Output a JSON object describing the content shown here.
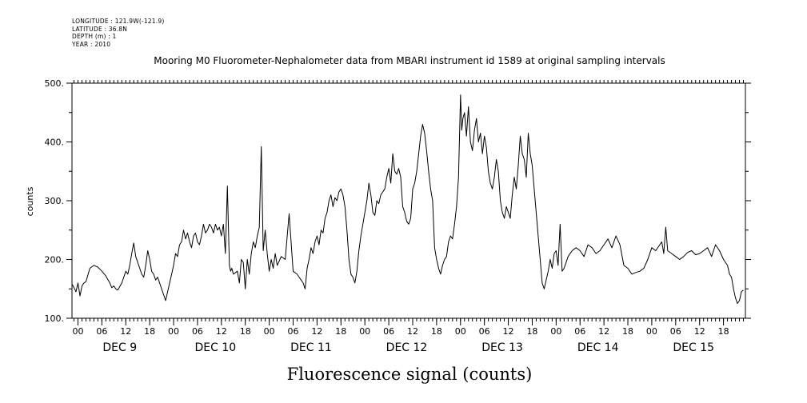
{
  "header": {
    "lines": [
      "LONGITUDE : 121.9W(-121.9)",
      "LATITUDE : 36.8N",
      "DEPTH (m) : 1",
      "YEAR : 2010"
    ]
  },
  "chart_data": {
    "type": "line",
    "title": "Mooring M0 Fluorometer-Nephalometer data from MBARI instrument id 1589 at original sampling intervals",
    "xlabel": "Fluorescence signal (counts)",
    "ylabel": "counts",
    "ylim": [
      100,
      500
    ],
    "yticks": [
      100,
      200,
      300,
      400,
      500
    ],
    "ytick_labels": [
      "100.",
      "200.",
      "300.",
      "400.",
      "500."
    ],
    "x_unit": "hours from DEC 9 00:00 (2010)",
    "xlim": [
      -1.5,
      167.5
    ],
    "hour_ticks": [
      {
        "x": 0,
        "label": "00"
      },
      {
        "x": 6,
        "label": "06"
      },
      {
        "x": 12,
        "label": "12"
      },
      {
        "x": 18,
        "label": "18"
      },
      {
        "x": 24,
        "label": "00"
      },
      {
        "x": 30,
        "label": "06"
      },
      {
        "x": 36,
        "label": "12"
      },
      {
        "x": 42,
        "label": "18"
      },
      {
        "x": 48,
        "label": "00"
      },
      {
        "x": 54,
        "label": "06"
      },
      {
        "x": 60,
        "label": "12"
      },
      {
        "x": 66,
        "label": "18"
      },
      {
        "x": 72,
        "label": "00"
      },
      {
        "x": 78,
        "label": "06"
      },
      {
        "x": 84,
        "label": "12"
      },
      {
        "x": 90,
        "label": "18"
      },
      {
        "x": 96,
        "label": "00"
      },
      {
        "x": 102,
        "label": "06"
      },
      {
        "x": 108,
        "label": "12"
      },
      {
        "x": 114,
        "label": "18"
      },
      {
        "x": 120,
        "label": "00"
      },
      {
        "x": 126,
        "label": "06"
      },
      {
        "x": 132,
        "label": "12"
      },
      {
        "x": 138,
        "label": "18"
      },
      {
        "x": 144,
        "label": "00"
      },
      {
        "x": 150,
        "label": "06"
      },
      {
        "x": 156,
        "label": "12"
      },
      {
        "x": 162,
        "label": "18"
      }
    ],
    "day_labels": [
      {
        "x": 10.5,
        "label": "DEC  9"
      },
      {
        "x": 34.5,
        "label": "DEC 10"
      },
      {
        "x": 58.5,
        "label": "DEC 11"
      },
      {
        "x": 82.5,
        "label": "DEC 12"
      },
      {
        "x": 106.5,
        "label": "DEC 13"
      },
      {
        "x": 130.5,
        "label": "DEC 14"
      },
      {
        "x": 154.5,
        "label": "DEC 15"
      }
    ],
    "grid": false,
    "series": [
      {
        "color": "#000000",
        "x": [
          -1.5,
          -1,
          -0.5,
          0,
          0.5,
          1,
          1.5,
          2,
          3,
          4,
          5,
          6,
          7,
          8,
          8.5,
          9,
          9.5,
          10,
          11,
          12,
          12.5,
          13,
          13.5,
          14,
          14.5,
          15,
          15.5,
          16,
          16.5,
          17,
          17.5,
          18,
          18.5,
          19,
          19.5,
          20,
          21,
          21.5,
          22,
          22.5,
          23,
          23.5,
          24,
          24.5,
          25,
          25.5,
          26,
          26.5,
          27,
          27.5,
          28,
          28.5,
          29,
          29.5,
          30,
          30.5,
          31,
          31.5,
          32,
          32.5,
          33,
          33.5,
          34,
          34.5,
          35,
          35.5,
          36,
          36.5,
          37,
          37.5,
          38,
          38.3,
          38.6,
          39,
          40,
          40.5,
          41,
          41.5,
          42,
          42.5,
          43,
          43.5,
          44,
          44.5,
          45,
          45.5,
          46,
          46.5,
          47,
          47.5,
          48,
          48.5,
          49,
          49.5,
          50,
          51,
          52,
          53,
          54,
          55,
          55.5,
          56,
          56.5,
          57,
          57.5,
          58,
          58.5,
          59,
          59.5,
          60,
          60.5,
          61,
          61.5,
          62,
          62.5,
          63,
          63.5,
          64,
          64.5,
          65,
          65.5,
          66,
          66.5,
          67,
          67.5,
          68,
          68.5,
          69,
          69.5,
          70,
          70.5,
          71,
          71.5,
          72,
          72.5,
          73,
          73.5,
          74,
          74.5,
          75,
          75.5,
          76,
          76.5,
          77,
          77.5,
          78,
          78.5,
          79,
          79.5,
          80,
          80.5,
          81,
          81.5,
          82,
          82.5,
          83,
          83.5,
          84,
          84.5,
          85,
          85.5,
          86,
          86.5,
          87,
          87.5,
          88,
          88.5,
          89,
          89.5,
          90,
          90.5,
          91,
          91.5,
          92,
          92.5,
          93,
          93.5,
          94,
          94.5,
          95,
          95.5,
          96,
          96.3,
          96.6,
          97,
          97.5,
          98,
          98.5,
          99,
          99.5,
          100,
          100.5,
          101,
          101.5,
          102,
          102.5,
          103,
          103.5,
          104,
          104.5,
          105,
          105.5,
          106,
          106.5,
          107,
          107.5,
          108,
          108.5,
          109,
          109.5,
          110,
          110.5,
          111,
          111.5,
          112,
          112.5,
          113,
          113.5,
          114,
          114.5,
          115,
          115.5,
          116,
          116.5,
          117,
          117.5,
          118,
          118.5,
          119,
          119.5,
          120,
          120.5,
          121,
          121.5,
          122,
          122.5,
          123,
          124,
          125,
          126,
          127,
          128,
          129,
          130,
          131,
          132,
          133,
          134,
          135,
          136,
          137,
          138,
          139,
          140,
          141,
          142,
          143,
          144,
          145,
          146,
          146.5,
          147,
          147.5,
          148,
          149,
          150,
          151,
          152,
          153,
          154,
          155,
          156,
          157,
          158,
          159,
          160,
          161,
          162,
          163,
          163.5,
          164,
          164.5,
          165,
          165.5,
          166,
          166.5,
          167
        ],
        "y": [
          158,
          152,
          145,
          160,
          138,
          155,
          160,
          162,
          185,
          190,
          187,
          180,
          172,
          160,
          152,
          155,
          150,
          148,
          160,
          180,
          175,
          190,
          210,
          228,
          205,
          195,
          185,
          175,
          170,
          190,
          215,
          200,
          180,
          175,
          165,
          170,
          150,
          140,
          130,
          145,
          160,
          175,
          190,
          210,
          205,
          225,
          230,
          250,
          235,
          245,
          230,
          220,
          240,
          245,
          230,
          225,
          240,
          260,
          245,
          250,
          260,
          255,
          245,
          260,
          250,
          255,
          240,
          260,
          210,
          325,
          190,
          180,
          185,
          175,
          180,
          160,
          200,
          195,
          150,
          200,
          175,
          210,
          230,
          220,
          240,
          255,
          392,
          215,
          250,
          210,
          180,
          200,
          185,
          210,
          190,
          205,
          200,
          278,
          180,
          175,
          170,
          165,
          160,
          150,
          185,
          200,
          220,
          210,
          230,
          240,
          225,
          250,
          245,
          270,
          280,
          300,
          310,
          290,
          305,
          300,
          315,
          320,
          310,
          290,
          250,
          200,
          175,
          170,
          160,
          180,
          215,
          240,
          260,
          280,
          300,
          330,
          310,
          280,
          275,
          300,
          295,
          310,
          315,
          320,
          340,
          355,
          330,
          380,
          350,
          345,
          355,
          340,
          290,
          280,
          265,
          260,
          270,
          320,
          330,
          350,
          380,
          410,
          430,
          415,
          385,
          350,
          320,
          300,
          220,
          200,
          185,
          175,
          190,
          200,
          205,
          230,
          240,
          235,
          260,
          290,
          340,
          480,
          420,
          440,
          450,
          410,
          460,
          400,
          385,
          420,
          440,
          400,
          415,
          380,
          410,
          390,
          350,
          330,
          320,
          340,
          370,
          350,
          300,
          280,
          270,
          290,
          280,
          270,
          310,
          340,
          320,
          360,
          410,
          380,
          370,
          340,
          415,
          380,
          360,
          320,
          280,
          240,
          200,
          160,
          150,
          165,
          180,
          200,
          185,
          210,
          215,
          190,
          260,
          180,
          185,
          195,
          205,
          215,
          220,
          215,
          205,
          225,
          220,
          210,
          215,
          225,
          235,
          220,
          240,
          225,
          190,
          185,
          175,
          178,
          180,
          185,
          200,
          220,
          215,
          225,
          230,
          210,
          255,
          215,
          210,
          205,
          200,
          205,
          212,
          215,
          208,
          210,
          215,
          220,
          205,
          225,
          215,
          200,
          190,
          175,
          170,
          150,
          135,
          125,
          130,
          145,
          148
        ]
      }
    ]
  }
}
